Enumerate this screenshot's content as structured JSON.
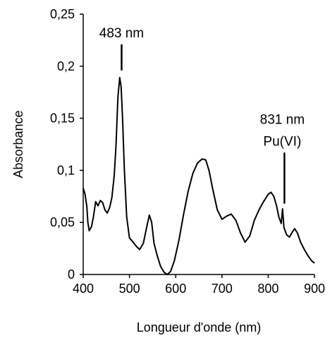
{
  "chart_data": {
    "type": "line",
    "title": "",
    "xlabel": "Longueur d'onde (nm)",
    "ylabel": "Absorbance",
    "xlim": [
      400,
      900
    ],
    "ylim": [
      0,
      0.25
    ],
    "x_ticks": [
      400,
      500,
      600,
      700,
      800,
      900
    ],
    "x_tick_labels": [
      "400",
      "500",
      "600",
      "700",
      "800",
      "900"
    ],
    "y_ticks": [
      0,
      0.05,
      0.1,
      0.15,
      0.2,
      0.25
    ],
    "y_tick_labels": [
      "0",
      "0,05",
      "0,1",
      "0,15",
      "0,2",
      "0,25"
    ],
    "grid": false,
    "series": [
      {
        "color": "#000000",
        "points": [
          [
            400,
            0.083
          ],
          [
            404,
            0.077
          ],
          [
            408,
            0.065
          ],
          [
            410,
            0.05
          ],
          [
            413,
            0.042
          ],
          [
            418,
            0.046
          ],
          [
            422,
            0.055
          ],
          [
            427,
            0.07
          ],
          [
            432,
            0.066
          ],
          [
            437,
            0.071
          ],
          [
            442,
            0.069
          ],
          [
            447,
            0.062
          ],
          [
            452,
            0.059
          ],
          [
            457,
            0.064
          ],
          [
            462,
            0.074
          ],
          [
            467,
            0.095
          ],
          [
            471,
            0.125
          ],
          [
            475,
            0.17
          ],
          [
            479,
            0.189
          ],
          [
            482,
            0.18
          ],
          [
            485,
            0.15
          ],
          [
            489,
            0.1
          ],
          [
            494,
            0.055
          ],
          [
            500,
            0.035
          ],
          [
            508,
            0.031
          ],
          [
            515,
            0.027
          ],
          [
            522,
            0.024
          ],
          [
            530,
            0.03
          ],
          [
            537,
            0.045
          ],
          [
            543,
            0.057
          ],
          [
            548,
            0.05
          ],
          [
            553,
            0.03
          ],
          [
            560,
            0.018
          ],
          [
            567,
            0.008
          ],
          [
            575,
            0.002
          ],
          [
            582,
            0.0
          ],
          [
            589,
            0.003
          ],
          [
            597,
            0.013
          ],
          [
            607,
            0.033
          ],
          [
            617,
            0.058
          ],
          [
            627,
            0.08
          ],
          [
            637,
            0.097
          ],
          [
            647,
            0.107
          ],
          [
            657,
            0.111
          ],
          [
            665,
            0.11
          ],
          [
            672,
            0.1
          ],
          [
            680,
            0.082
          ],
          [
            690,
            0.062
          ],
          [
            700,
            0.053
          ],
          [
            710,
            0.056
          ],
          [
            720,
            0.058
          ],
          [
            730,
            0.052
          ],
          [
            740,
            0.04
          ],
          [
            750,
            0.031
          ],
          [
            760,
            0.037
          ],
          [
            770,
            0.052
          ],
          [
            780,
            0.062
          ],
          [
            790,
            0.07
          ],
          [
            800,
            0.077
          ],
          [
            806,
            0.079
          ],
          [
            812,
            0.075
          ],
          [
            818,
            0.066
          ],
          [
            823,
            0.055
          ],
          [
            828,
            0.049
          ],
          [
            831,
            0.063
          ],
          [
            834,
            0.045
          ],
          [
            840,
            0.038
          ],
          [
            846,
            0.036
          ],
          [
            851,
            0.04
          ],
          [
            857,
            0.044
          ],
          [
            863,
            0.04
          ],
          [
            870,
            0.031
          ],
          [
            878,
            0.024
          ],
          [
            886,
            0.018
          ],
          [
            894,
            0.013
          ],
          [
            900,
            0.011
          ]
        ]
      }
    ],
    "annotations": [
      {
        "text_lines": [
          "483 nm"
        ],
        "x": 483,
        "y_bar_top": 0.221,
        "y_bar_bottom": 0.196
      },
      {
        "text_lines": [
          "831 nm",
          "Pu(VI)"
        ],
        "x": 835,
        "y_bar_top": 0.117,
        "y_bar_bottom": 0.068
      }
    ]
  }
}
